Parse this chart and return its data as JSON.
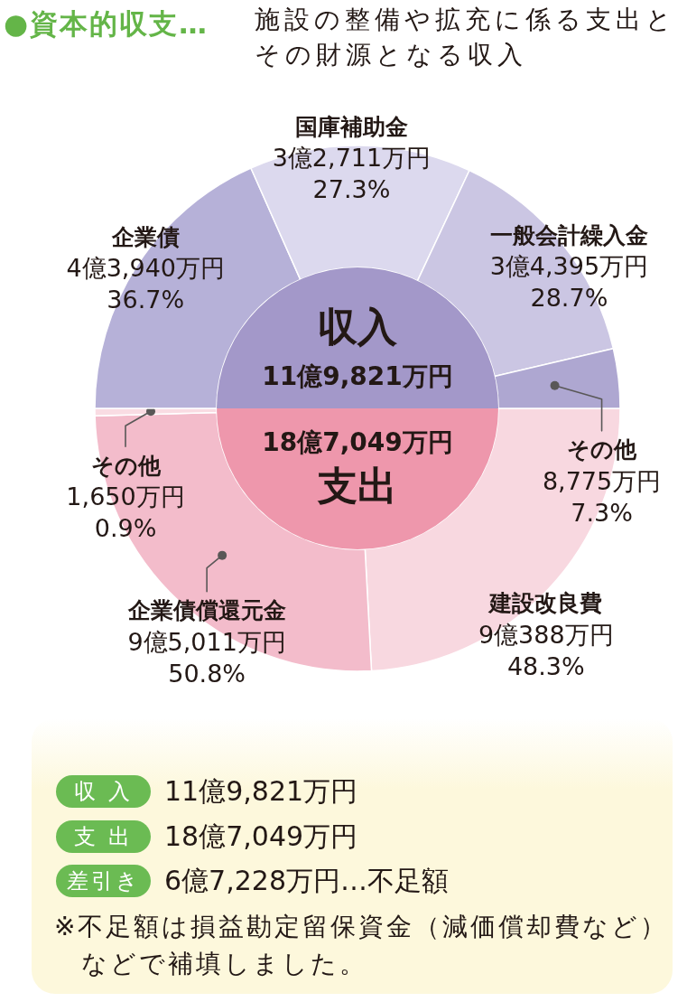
{
  "chart_data": [
    {
      "type": "other",
      "title": "●資本的収支…",
      "subtitle": "施設の整備や拡充に係る支出とその財源となる収入"
    },
    {
      "type": "donut",
      "title": "収入",
      "subtitle": "11億9,821万円",
      "categories": [
        "企業債",
        "国庫補助金",
        "一般会計繰入金",
        "その他"
      ],
      "values": [
        36.7,
        27.3,
        28.7,
        7.3
      ],
      "colors": [
        "#b6b1d8",
        "#dcd9ee",
        "#cbc6e3",
        "#aea7d1"
      ],
      "value_labels": [
        "4億3,940万円\n36.7%",
        "3億2,711万円\n27.3%",
        "3億4,395万円\n28.7%",
        "8,775万円\n7.3%"
      ]
    },
    {
      "type": "donut",
      "title": "支出",
      "subtitle": "18億7,049万円",
      "categories": [
        "建設改良費",
        "企業債償還元金",
        "その他"
      ],
      "values": [
        48.3,
        50.8,
        0.9
      ],
      "colors": [
        "#f8d8e0",
        "#f3bccb",
        "#f9dce3"
      ],
      "value_labels": [
        "9億388万円\n48.3%",
        "9億5,011万円\n50.8%",
        "1,650万円\n0.9%"
      ]
    },
    {
      "type": "other",
      "annotations": [
        "収 入",
        "11億9,821万円",
        "支 出",
        "18億7,049万円",
        "差引き",
        "6億7,228万円…不足額",
        "※不足額は損益勘定留保資金（減価償却費など）などで補填しました。"
      ]
    }
  ]
}
